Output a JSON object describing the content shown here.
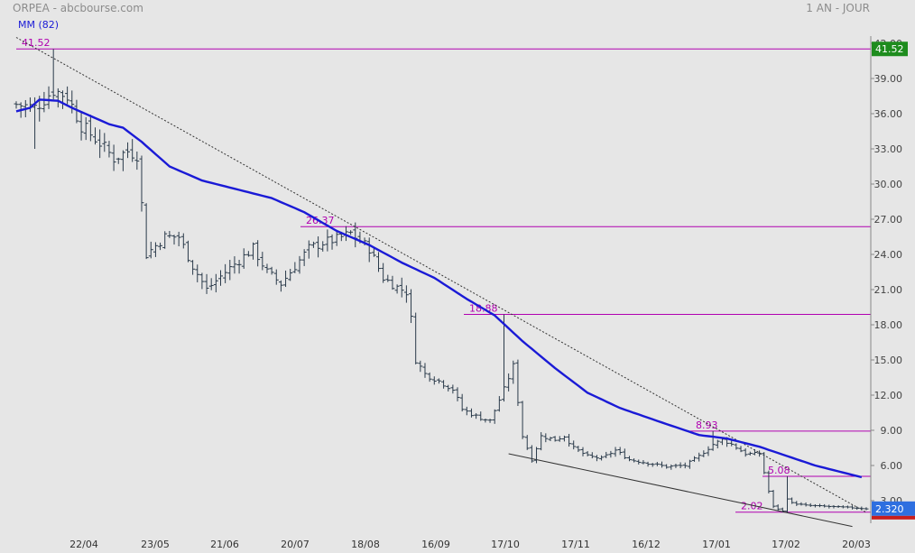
{
  "header": {
    "title": "ORPEA - abcbourse.com",
    "period": "1 AN - JOUR",
    "ma_legend": "MM (82)"
  },
  "colors": {
    "background": "#e6e6e6",
    "bars": "#2a3a4a",
    "moving_average": "#1a1ad6",
    "levels": "#b000b0",
    "trendline": "#333333",
    "max_tag": "#1e8c1e",
    "last_tag": "#2e6fe0",
    "last_tag_bottom": "#c81e1e"
  },
  "chart_data": {
    "type": "ohlc",
    "title": "ORPEA - abcbourse.com",
    "period": "1 AN - JOUR",
    "y_ticks": [
      "42.00",
      "39.00",
      "36.00",
      "33.00",
      "30.00",
      "27.00",
      "24.00",
      "21.00",
      "18.00",
      "15.00",
      "12.00",
      "9.00",
      "6.00",
      "3.00"
    ],
    "y_range": [
      1.0,
      42.5
    ],
    "x_ticks": [
      "22/04",
      "23/05",
      "21/06",
      "20/07",
      "18/08",
      "16/09",
      "17/10",
      "17/11",
      "16/12",
      "17/01",
      "17/02",
      "20/03"
    ],
    "close_anchors": [
      [
        0,
        36.8
      ],
      [
        4,
        36.5
      ],
      [
        8,
        38.0
      ],
      [
        11,
        37.5
      ],
      [
        14,
        35.0
      ],
      [
        18,
        33.5
      ],
      [
        21,
        32.2
      ],
      [
        24,
        32.8
      ],
      [
        26,
        32.5
      ],
      [
        28,
        24.0
      ],
      [
        32,
        25.5
      ],
      [
        35,
        25.5
      ],
      [
        38,
        23.0
      ],
      [
        41,
        21.0
      ],
      [
        45,
        22.5
      ],
      [
        48,
        23.5
      ],
      [
        51,
        24.5
      ],
      [
        54,
        22.5
      ],
      [
        57,
        21.5
      ],
      [
        60,
        23.0
      ],
      [
        63,
        24.5
      ],
      [
        66,
        25.0
      ],
      [
        69,
        25.3
      ],
      [
        72,
        25.8
      ],
      [
        76,
        24.5
      ],
      [
        79,
        22.0
      ],
      [
        82,
        21.2
      ],
      [
        84,
        20.8
      ],
      [
        85,
        18.5
      ],
      [
        86,
        15.0
      ],
      [
        88,
        13.8
      ],
      [
        91,
        13.2
      ],
      [
        94,
        12.5
      ],
      [
        96,
        10.8
      ],
      [
        99,
        10.2
      ],
      [
        102,
        9.8
      ],
      [
        105,
        12.5
      ],
      [
        107,
        14.5
      ],
      [
        109,
        8.5
      ],
      [
        111,
        6.5
      ],
      [
        113,
        8.5
      ],
      [
        116,
        8.2
      ],
      [
        118,
        8.5
      ],
      [
        120,
        7.5
      ],
      [
        123,
        6.8
      ],
      [
        126,
        6.6
      ],
      [
        129,
        7.3
      ],
      [
        132,
        6.5
      ],
      [
        136,
        6.2
      ],
      [
        140,
        5.9
      ],
      [
        144,
        6.0
      ],
      [
        147,
        6.8
      ],
      [
        150,
        7.8
      ],
      [
        152,
        8.2
      ],
      [
        154,
        7.8
      ],
      [
        157,
        7.0
      ],
      [
        160,
        7.0
      ],
      [
        162,
        3.8
      ],
      [
        163,
        2.5
      ],
      [
        165,
        2.1
      ],
      [
        166,
        3.2
      ],
      [
        167,
        2.8
      ],
      [
        170,
        2.6
      ],
      [
        175,
        2.5
      ],
      [
        180,
        2.4
      ],
      [
        183,
        2.32
      ]
    ],
    "moving_average_anchors": [
      [
        0,
        36.2
      ],
      [
        3,
        36.5
      ],
      [
        5,
        37.2
      ],
      [
        9,
        37.1
      ],
      [
        12,
        36.5
      ],
      [
        16,
        35.8
      ],
      [
        20,
        35.1
      ],
      [
        23,
        34.8
      ],
      [
        27,
        33.6
      ],
      [
        33,
        31.5
      ],
      [
        40,
        30.3
      ],
      [
        47,
        29.6
      ],
      [
        55,
        28.8
      ],
      [
        62,
        27.6
      ],
      [
        69,
        26.0
      ],
      [
        76,
        24.8
      ],
      [
        83,
        23.3
      ],
      [
        90,
        22.0
      ],
      [
        97,
        20.2
      ],
      [
        103,
        18.8
      ],
      [
        109,
        16.6
      ],
      [
        116,
        14.3
      ],
      [
        123,
        12.2
      ],
      [
        130,
        10.9
      ],
      [
        138,
        9.8
      ],
      [
        147,
        8.6
      ],
      [
        153,
        8.3
      ],
      [
        160,
        7.6
      ],
      [
        166,
        6.8
      ],
      [
        172,
        6.0
      ],
      [
        178,
        5.4
      ],
      [
        182,
        5.0
      ]
    ],
    "levels": [
      {
        "value": 41.52,
        "label": "41.52"
      },
      {
        "value": 26.37,
        "label": "26.37"
      },
      {
        "value": 18.88,
        "label": "18.88"
      },
      {
        "value": 8.93,
        "label": "8.93"
      },
      {
        "value": 5.08,
        "label": "5.08"
      },
      {
        "value": 2.02,
        "label": "2.02"
      }
    ],
    "max_tag": "41.52",
    "last_tag": "2.320",
    "trendlines": [
      {
        "from": [
          0,
          42.5
        ],
        "to": [
          183,
          2.0
        ],
        "style": "dotted"
      },
      {
        "from": [
          106,
          7.0
        ],
        "to": [
          180,
          0.8
        ],
        "style": "solid"
      }
    ],
    "grid": false
  }
}
